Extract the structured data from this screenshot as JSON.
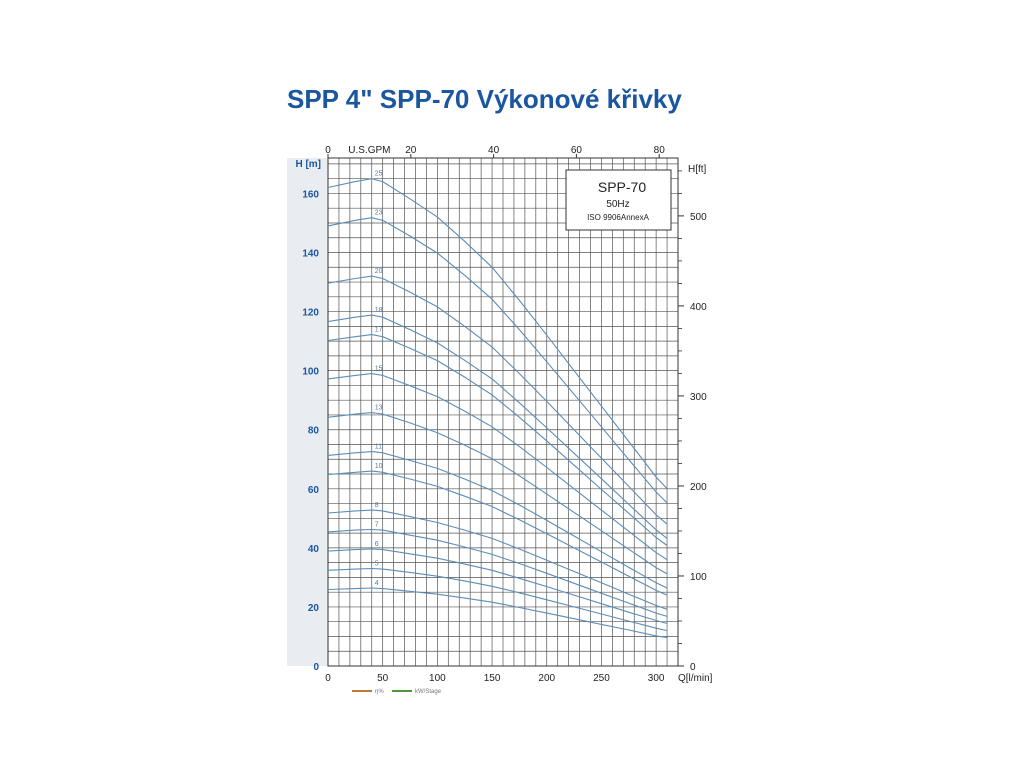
{
  "title": "SPP 4\" SPP-70 Výkonové křivky",
  "chart_data": {
    "type": "line",
    "title": "SPP 4\" SPP-70 Výkonové křivky",
    "xlabel": "Q[l/min]",
    "ylabel": "H [m]",
    "x2label": "U.S.GPM",
    "y2label": "H[ft]",
    "xlim": [
      0,
      320
    ],
    "ylim": [
      0,
      172
    ],
    "x_ticks": [
      0,
      50,
      100,
      150,
      200,
      250,
      300
    ],
    "y_ticks": [
      0,
      20,
      40,
      60,
      80,
      100,
      120,
      140,
      160
    ],
    "x2_ticks": [
      0,
      20,
      40,
      60,
      80
    ],
    "y2_ticks": [
      0,
      100,
      200,
      300,
      400,
      500
    ],
    "grid": true,
    "x": [
      0,
      25,
      40,
      50,
      75,
      100,
      125,
      150,
      175,
      200,
      225,
      250,
      275,
      300,
      310
    ],
    "series": [
      {
        "name": "4",
        "values": [
          25.9,
          26.2,
          26.4,
          26.2,
          25.3,
          24.3,
          23.0,
          21.6,
          19.8,
          17.9,
          16.0,
          14.1,
          12.2,
          10.2,
          9.6
        ]
      },
      {
        "name": "5",
        "values": [
          32.4,
          32.8,
          33.0,
          32.8,
          31.7,
          30.4,
          28.8,
          27.0,
          24.8,
          22.4,
          20.0,
          17.6,
          15.2,
          12.8,
          12.0
        ]
      },
      {
        "name": "6",
        "values": [
          38.9,
          39.4,
          39.6,
          39.4,
          38.0,
          36.5,
          34.5,
          32.4,
          29.7,
          26.9,
          24.0,
          21.1,
          18.2,
          15.4,
          14.4
        ]
      },
      {
        "name": "7",
        "values": [
          45.4,
          46.0,
          46.2,
          46.0,
          44.3,
          42.6,
          40.3,
          37.8,
          34.7,
          31.4,
          28.0,
          24.6,
          21.3,
          17.9,
          16.8
        ]
      },
      {
        "name": "8",
        "values": [
          51.8,
          52.5,
          52.8,
          52.5,
          50.6,
          48.6,
          46.0,
          43.2,
          39.6,
          35.8,
          32.0,
          28.2,
          24.3,
          20.5,
          19.2
        ]
      },
      {
        "name": "10",
        "values": [
          64.8,
          65.6,
          66.0,
          65.6,
          63.3,
          60.8,
          57.5,
          54.0,
          49.5,
          44.8,
          40.0,
          35.2,
          30.4,
          25.6,
          24.0
        ]
      },
      {
        "name": "11",
        "values": [
          71.3,
          72.2,
          72.6,
          72.2,
          69.6,
          66.9,
          63.3,
          59.4,
          54.5,
          49.3,
          44.0,
          38.7,
          33.4,
          28.2,
          26.4
        ]
      },
      {
        "name": "13",
        "values": [
          84.2,
          85.3,
          85.8,
          85.3,
          82.3,
          79.0,
          74.8,
          70.2,
          64.4,
          58.2,
          52.0,
          45.8,
          39.5,
          33.3,
          31.2
        ]
      },
      {
        "name": "15",
        "values": [
          97.2,
          98.4,
          99.0,
          98.4,
          94.9,
          91.2,
          86.3,
          81.0,
          74.3,
          67.2,
          60.0,
          52.8,
          45.6,
          38.4,
          36.0
        ]
      },
      {
        "name": "17",
        "values": [
          110.2,
          111.5,
          112.2,
          111.5,
          107.6,
          103.4,
          97.8,
          91.8,
          84.2,
          76.2,
          68.0,
          59.8,
          51.7,
          43.5,
          40.8
        ]
      },
      {
        "name": "18",
        "values": [
          116.6,
          118.1,
          118.8,
          118.1,
          113.9,
          109.4,
          103.5,
          97.2,
          89.1,
          80.6,
          72.0,
          63.4,
          54.7,
          46.1,
          43.2
        ]
      },
      {
        "name": "20",
        "values": [
          129.6,
          131.2,
          132.0,
          131.2,
          126.6,
          121.6,
          115.0,
          108.0,
          99.0,
          89.6,
          80.0,
          70.4,
          60.8,
          51.2,
          48.0
        ]
      },
      {
        "name": "23",
        "values": [
          149.0,
          150.9,
          151.8,
          150.9,
          145.6,
          139.8,
          132.3,
          124.2,
          113.9,
          103.0,
          92.0,
          81.0,
          69.9,
          58.9,
          55.2
        ]
      },
      {
        "name": "25",
        "values": [
          162.0,
          164.0,
          165.0,
          164.0,
          158.2,
          152.0,
          143.8,
          135.0,
          123.8,
          112.0,
          100.0,
          88.0,
          76.0,
          64.0,
          60.0
        ]
      }
    ],
    "info_box": {
      "model": "SPP-70",
      "frequency": "50Hz",
      "standard": "ISO 9906AnnexA"
    },
    "legend": [
      "η%",
      "kW/Stage"
    ],
    "legend_colors": [
      "#c7763a",
      "#4a9a3a"
    ],
    "line_color": "#5b8db8"
  }
}
